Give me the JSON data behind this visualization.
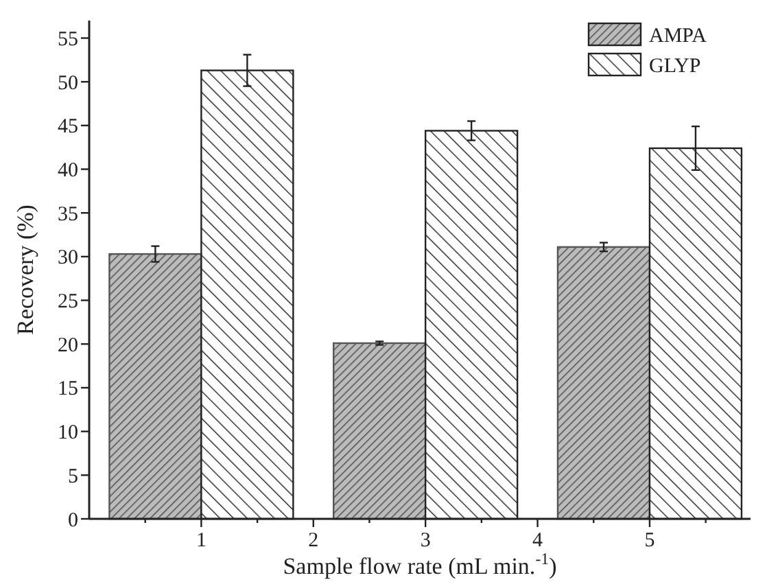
{
  "chart_data": {
    "type": "bar",
    "xlabel": "Sample flow rate (mL min.$^{-1}$)",
    "ylabel": "Recovery (%)",
    "x": [
      1,
      3,
      5
    ],
    "series": [
      {
        "name": "AMPA",
        "color": "#555555",
        "values": [
          30.3,
          20.1,
          31.1
        ],
        "errors": [
          0.9,
          0.2,
          0.5
        ]
      },
      {
        "name": "GLYP",
        "color": "#222222",
        "values": [
          51.3,
          44.4,
          42.4
        ],
        "errors": [
          1.8,
          1.1,
          2.5
        ]
      }
    ],
    "xlim": [
      0,
      5.9
    ],
    "xticks": [
      {
        "value": 0.5,
        "label": null
      },
      1,
      {
        "value": 1.5,
        "label": null
      },
      2,
      {
        "value": 2.5,
        "label": null
      },
      3,
      {
        "value": 3.5,
        "label": null
      },
      4,
      {
        "value": 4.5,
        "label": null
      },
      5,
      {
        "value": 5.5,
        "label": null
      }
    ],
    "ylim": [
      0,
      57
    ],
    "yticks": [
      0,
      5,
      10,
      15,
      20,
      25,
      30,
      35,
      40,
      45,
      50,
      55
    ],
    "legend": "top right",
    "grid": false
  }
}
